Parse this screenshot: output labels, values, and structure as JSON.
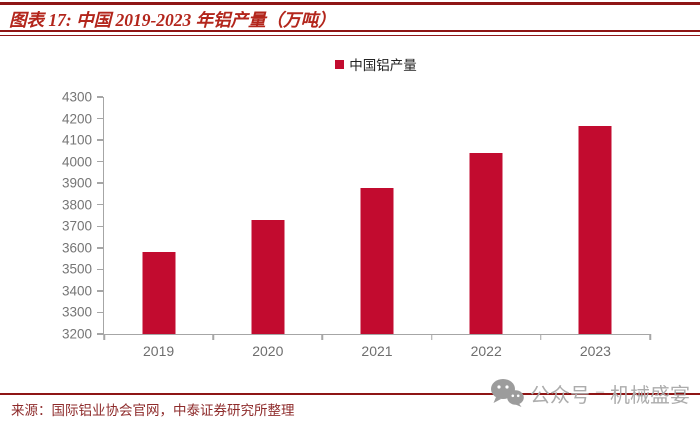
{
  "header": {
    "title": "图表 17: 中国 2019-2023 年铝产量（万吨）"
  },
  "legend": {
    "label": "中国铝产量",
    "swatch_color": "#C20B2F"
  },
  "chart_data": {
    "type": "bar",
    "title": "中国 2019-2023 年铝产量（万吨）",
    "categories": [
      "2019",
      "2020",
      "2021",
      "2022",
      "2023"
    ],
    "series": [
      {
        "name": "中国铝产量",
        "values": [
          3580,
          3730,
          3880,
          4040,
          4165
        ]
      }
    ],
    "xlabel": "",
    "ylabel": "",
    "ylim": [
      3200,
      4300
    ],
    "yticks": [
      4300,
      4200,
      4100,
      4000,
      3900,
      3800,
      3700,
      3600,
      3500,
      3400,
      3300,
      3200
    ],
    "grid": false,
    "legend_position": "top-center",
    "bar_color": "#C20B2F"
  },
  "footer": {
    "source": "来源：国际铝业协会官网，中泰证券研究所整理",
    "watermark": {
      "icon": "wechat-icon",
      "label": "公众号",
      "separator": "–",
      "brand": "机械盛宴"
    }
  },
  "colors": {
    "bar": "#C20B2F",
    "header_line": "#8E1515",
    "title_text": "#B3261C",
    "source_text": "#8E2B2B",
    "axis": "#A6A6A6",
    "axis_label": "#757575",
    "watermark": "#ACACAC"
  }
}
